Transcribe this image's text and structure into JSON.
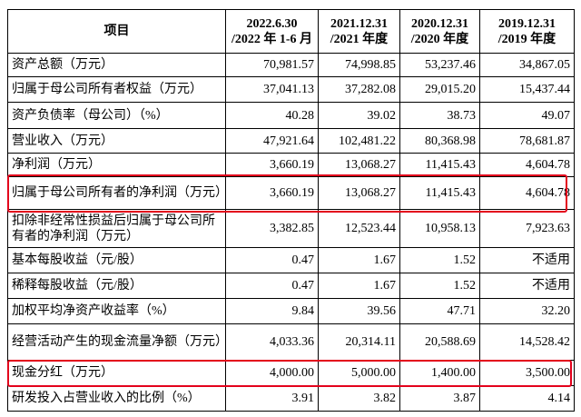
{
  "table": {
    "header": [
      "项目",
      [
        "2022.6.30",
        "/2022 年 1-6 月"
      ],
      [
        "2021.12.31",
        "/2021 年度"
      ],
      [
        "2020.12.31",
        "/2020 年度"
      ],
      [
        "2019.12.31",
        "/2019 年度"
      ]
    ],
    "rows": [
      [
        "资产总额（万元）",
        "70,981.57",
        "74,998.85",
        "53,237.46",
        "34,867.05"
      ],
      [
        "归属于母公司所有者权益（万元）",
        "37,041.13",
        "37,282.08",
        "29,015.20",
        "15,437.44"
      ],
      [
        "资产负债率（母公司）（%）",
        "40.28",
        "39.02",
        "38.73",
        "49.07"
      ],
      [
        "营业收入（万元）",
        "47,921.64",
        "102,481.22",
        "80,368.98",
        "78,681.87"
      ],
      [
        "净利润（万元）",
        "3,660.19",
        "13,068.27",
        "11,415.43",
        "4,604.78"
      ],
      [
        "归属于母公司所有者的净利润（万元）",
        "3,660.19",
        "13,068.27",
        "11,415.43",
        "4,604.78"
      ],
      [
        "扣除非经常性损益后归属于母公司所有者的净利润（万元）",
        "3,382.85",
        "12,523.44",
        "10,958.13",
        "7,923.63"
      ],
      [
        "基本每股收益（元/股）",
        "0.47",
        "1.67",
        "1.52",
        "不适用"
      ],
      [
        "稀释每股收益（元/股）",
        "0.47",
        "1.67",
        "1.52",
        "不适用"
      ],
      [
        "加权平均净资产收益率（%）",
        "9.84",
        "39.56",
        "47.71",
        "32.20"
      ],
      [
        "经营活动产生的现金流量净额（万元）",
        "4,033.36",
        "20,314.11",
        "20,588.69",
        "14,528.42"
      ],
      [
        "现金分红（万元）",
        "4,000.00",
        "5,000.00",
        "1,400.00",
        "3,500.00"
      ],
      [
        "研发投入占营业收入的比例（%）",
        "3.91",
        "3.82",
        "3.87",
        "4.14"
      ]
    ]
  }
}
